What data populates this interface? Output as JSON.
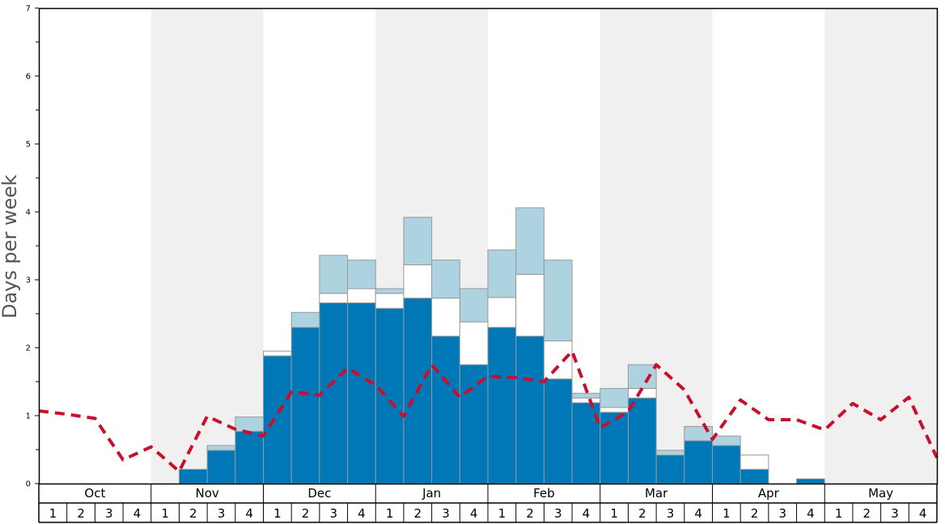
{
  "chart_data": {
    "type": "bar",
    "title": "",
    "xlabel": "",
    "ylabel": "Days per week",
    "ylim": [
      0,
      7
    ],
    "y_ticks": [
      "0",
      "1",
      "2",
      "3",
      "4",
      "5",
      "6",
      "7"
    ],
    "months": [
      "Oct",
      "Nov",
      "Dec",
      "Jan",
      "Feb",
      "Mar",
      "Apr",
      "May"
    ],
    "week_labels": [
      "1",
      "2",
      "3",
      "4"
    ],
    "stacked": true,
    "series": [
      {
        "color": "#0077b6",
        "values": [
          0,
          0,
          0,
          0,
          0,
          0.21,
          0.49,
          0.77,
          1.88,
          2.3,
          2.66,
          2.66,
          2.58,
          2.73,
          2.17,
          1.75,
          2.3,
          2.17,
          1.54,
          1.19,
          1.05,
          1.26,
          0.42,
          0.63,
          0.56,
          0.21,
          0,
          0.07,
          0,
          0,
          0,
          0
        ]
      },
      {
        "color": "#ffffff",
        "values": [
          0,
          0,
          0,
          0,
          0,
          0,
          0,
          0,
          0.07,
          0,
          0.14,
          0.21,
          0.22,
          0.49,
          0.56,
          0.63,
          0.44,
          0.91,
          0.56,
          0.07,
          0.07,
          0.14,
          0,
          0,
          0,
          0.21,
          0,
          0,
          0,
          0,
          0,
          0
        ]
      },
      {
        "color": "#aed3e0",
        "values": [
          0,
          0,
          0,
          0,
          0,
          0,
          0.07,
          0.21,
          0,
          0.22,
          0.56,
          0.42,
          0.07,
          0.7,
          0.56,
          0.49,
          0.7,
          0.98,
          1.19,
          0.07,
          0.28,
          0.35,
          0.07,
          0.21,
          0.14,
          0,
          0,
          0,
          0,
          0,
          0,
          0
        ]
      }
    ],
    "average_line": {
      "style": "dashed",
      "color": "#c8102e",
      "values": [
        1.07,
        1.02,
        0.96,
        0.35,
        0.54,
        0.18,
        0.99,
        0.8,
        0.7,
        1.35,
        1.3,
        1.7,
        1.45,
        0.99,
        1.75,
        1.27,
        1.58,
        1.56,
        1.5,
        1.95,
        0.82,
        1.06,
        1.75,
        1.38,
        0.65,
        1.23,
        0.94,
        0.94,
        0.79,
        1.18,
        0.94,
        1.27,
        0.38
      ]
    },
    "month_background": [
      "#ffffff",
      "#f0f0f0"
    ],
    "grid": false
  }
}
